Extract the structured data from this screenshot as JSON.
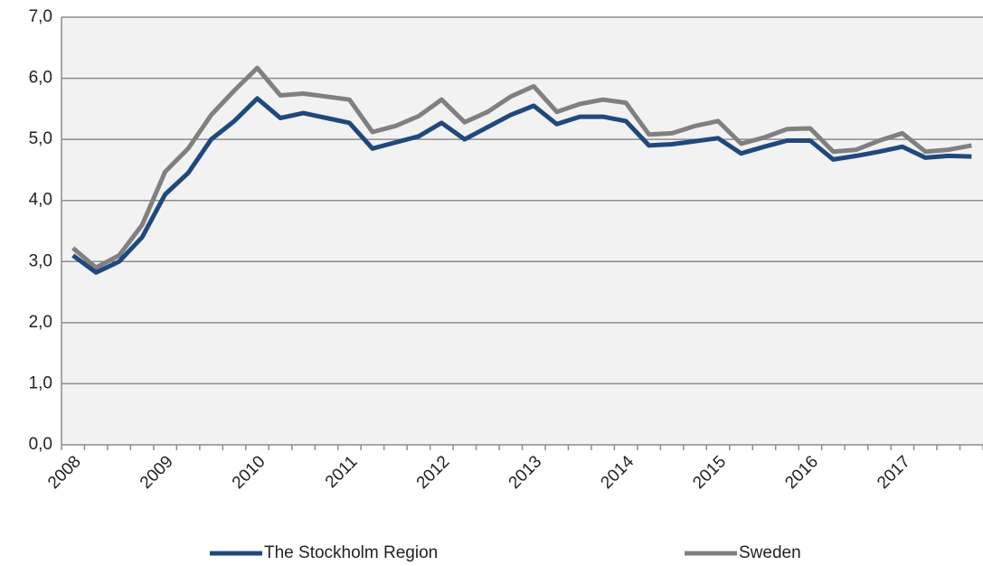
{
  "chart_data": {
    "type": "line",
    "categories": [
      "2008",
      null,
      null,
      null,
      "2009",
      null,
      null,
      null,
      "2010",
      null,
      null,
      null,
      "2011",
      null,
      null,
      null,
      "2012",
      null,
      null,
      null,
      "2013",
      null,
      null,
      null,
      "2014",
      null,
      null,
      null,
      "2015",
      null,
      null,
      null,
      "2016",
      null,
      null,
      null,
      "2017",
      null,
      null,
      null
    ],
    "series": [
      {
        "name": "The Stockholm Region",
        "color": "#1f497d",
        "values": [
          3.1,
          2.82,
          3.0,
          3.4,
          4.1,
          4.45,
          5.0,
          5.3,
          5.67,
          5.35,
          5.43,
          5.35,
          5.27,
          4.85,
          4.95,
          5.05,
          5.27,
          5.0,
          5.2,
          5.4,
          5.55,
          5.25,
          5.37,
          5.37,
          5.3,
          4.9,
          4.92,
          4.97,
          5.02,
          4.77,
          4.88,
          4.98,
          4.98,
          4.67,
          4.73,
          4.8,
          4.88,
          4.7,
          4.73,
          4.72
        ]
      },
      {
        "name": "Sweden",
        "color": "#808080",
        "values": [
          3.22,
          2.9,
          3.1,
          3.6,
          4.47,
          4.85,
          5.4,
          5.8,
          6.17,
          5.72,
          5.75,
          5.7,
          5.65,
          5.12,
          5.22,
          5.38,
          5.65,
          5.28,
          5.45,
          5.7,
          5.87,
          5.45,
          5.58,
          5.65,
          5.6,
          5.08,
          5.1,
          5.22,
          5.3,
          4.93,
          5.03,
          5.17,
          5.18,
          4.8,
          4.83,
          4.98,
          5.1,
          4.8,
          4.83,
          4.9
        ]
      }
    ],
    "ylim": [
      0,
      7
    ],
    "yticks": [
      {
        "value": 0,
        "label": "0,0"
      },
      {
        "value": 1,
        "label": "1,0"
      },
      {
        "value": 2,
        "label": "2,0"
      },
      {
        "value": 3,
        "label": "3,0"
      },
      {
        "value": 4,
        "label": "4,0"
      },
      {
        "value": 5,
        "label": "5,0"
      },
      {
        "value": 6,
        "label": "6,0"
      },
      {
        "value": 7,
        "label": "7,0"
      }
    ],
    "grid": true
  }
}
